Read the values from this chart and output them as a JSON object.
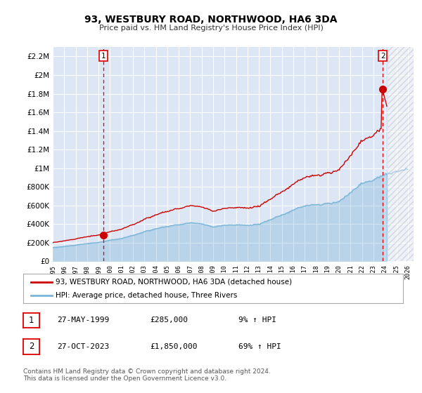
{
  "title": "93, WESTBURY ROAD, NORTHWOOD, HA6 3DA",
  "subtitle": "Price paid vs. HM Land Registry's House Price Index (HPI)",
  "background_color": "#ffffff",
  "plot_bg_color": "#dce6f5",
  "grid_color": "#ffffff",
  "ylim": [
    0,
    2300000
  ],
  "yticks": [
    0,
    200000,
    400000,
    600000,
    800000,
    1000000,
    1200000,
    1400000,
    1600000,
    1800000,
    2000000,
    2200000
  ],
  "ytick_labels": [
    "£0",
    "£200K",
    "£400K",
    "£600K",
    "£800K",
    "£1M",
    "£1.2M",
    "£1.4M",
    "£1.6M",
    "£1.8M",
    "£2M",
    "£2.2M"
  ],
  "xlim_start": 1995.0,
  "xlim_end": 2026.5,
  "hpi_color": "#7ab5d8",
  "price_color": "#cc0000",
  "sale1_x": 1999.41,
  "sale1_y": 285000,
  "sale2_x": 2023.82,
  "sale2_y": 1850000,
  "vline_color": "#dd0000",
  "legend_label_price": "93, WESTBURY ROAD, NORTHWOOD, HA6 3DA (detached house)",
  "legend_label_hpi": "HPI: Average price, detached house, Three Rivers",
  "table_row1": [
    "1",
    "27-MAY-1999",
    "£285,000",
    "9% ↑ HPI"
  ],
  "table_row2": [
    "2",
    "27-OCT-2023",
    "£1,850,000",
    "69% ↑ HPI"
  ],
  "footer_text": "Contains HM Land Registry data © Crown copyright and database right 2024.\nThis data is licensed under the Open Government Licence v3.0."
}
